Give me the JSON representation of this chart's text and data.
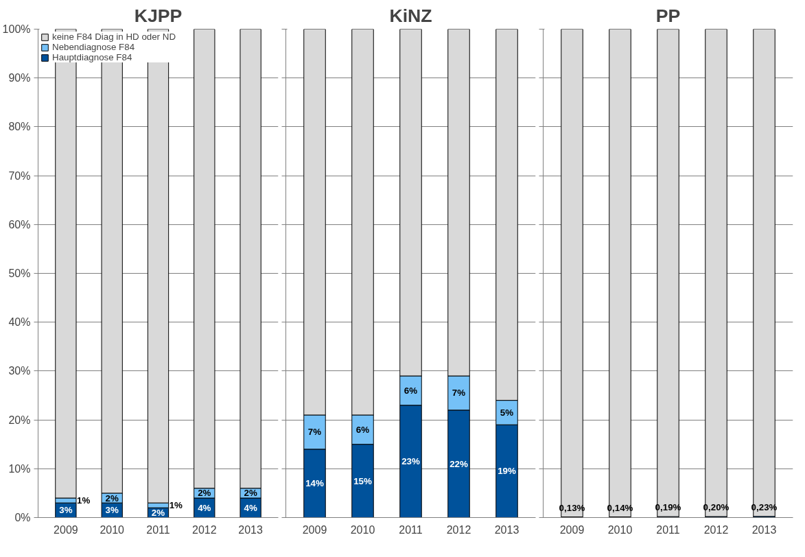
{
  "chart_data": [
    {
      "type": "bar",
      "title": "KJPP",
      "stacked": true,
      "categories": [
        "2009",
        "2010",
        "2011",
        "2012",
        "2013"
      ],
      "ylim": [
        0,
        100
      ],
      "yticks": [
        {
          "value": 0,
          "label": "0%"
        },
        {
          "value": 10,
          "label": "10%"
        },
        {
          "value": 20,
          "label": "20%"
        },
        {
          "value": 30,
          "label": "30%"
        },
        {
          "value": 40,
          "label": "40%"
        },
        {
          "value": 50,
          "label": "50%"
        },
        {
          "value": 60,
          "label": "60%"
        },
        {
          "value": 70,
          "label": "70%"
        },
        {
          "value": 80,
          "label": "80%"
        },
        {
          "value": 90,
          "label": "90%"
        },
        {
          "value": 100,
          "label": "100%"
        }
      ],
      "grid": "y",
      "legend": "top",
      "series": [
        {
          "name": "Hauptdiagnose F84",
          "color": "#00529b",
          "values": [
            3,
            3,
            2,
            4,
            4
          ],
          "value_labels": [
            "3%",
            "3%",
            "2%",
            "4%",
            "4%"
          ]
        },
        {
          "name": "Nebendiagnose F84",
          "color": "#75c1f7",
          "values": [
            1,
            2,
            1,
            2,
            2
          ],
          "value_labels": [
            "1%",
            "2%",
            "1%",
            "2%",
            "2%"
          ]
        },
        {
          "name": "keine F84 Diag in HD oder ND",
          "color": "#d9d9d9",
          "values": [
            96,
            95,
            97,
            94,
            94
          ]
        }
      ]
    },
    {
      "type": "bar",
      "title": "KiNZ",
      "stacked": true,
      "categories": [
        "2009",
        "2010",
        "2011",
        "2012",
        "2013"
      ],
      "ylim": [
        0,
        100
      ],
      "yticks": [
        {
          "value": 0,
          "label": null
        },
        {
          "value": 10,
          "label": null
        },
        {
          "value": 20,
          "label": null
        },
        {
          "value": 30,
          "label": null
        },
        {
          "value": 40,
          "label": null
        },
        {
          "value": 50,
          "label": null
        },
        {
          "value": 60,
          "label": null
        },
        {
          "value": 70,
          "label": null
        },
        {
          "value": 80,
          "label": null
        },
        {
          "value": 90,
          "label": null
        },
        {
          "value": 100,
          "label": null
        }
      ],
      "grid": "y",
      "tick_labels": "x",
      "series": [
        {
          "color": "#00529b",
          "values": [
            14,
            15,
            23,
            22,
            19
          ],
          "value_labels": [
            "14%",
            "15%",
            "23%",
            "22%",
            "19%"
          ]
        },
        {
          "color": "#75c1f7",
          "values": [
            7,
            6,
            6,
            7,
            5
          ],
          "value_labels": [
            "7%",
            "6%",
            "6%",
            "7%",
            "5%"
          ]
        },
        {
          "color": "#d9d9d9",
          "values": [
            79,
            79,
            71,
            71,
            76
          ]
        }
      ]
    },
    {
      "type": "bar",
      "title": "PP",
      "stacked": true,
      "categories": [
        "2009",
        "2010",
        "2011",
        "2012",
        "2013"
      ],
      "ylim": [
        0,
        100
      ],
      "yticks": [
        {
          "value": 0,
          "label": null
        },
        {
          "value": 10,
          "label": null
        },
        {
          "value": 20,
          "label": null
        },
        {
          "value": 30,
          "label": null
        },
        {
          "value": 40,
          "label": null
        },
        {
          "value": 50,
          "label": null
        },
        {
          "value": 60,
          "label": null
        },
        {
          "value": 70,
          "label": null
        },
        {
          "value": 80,
          "label": null
        },
        {
          "value": 90,
          "label": null
        },
        {
          "value": 100,
          "label": null
        }
      ],
      "grid": "y",
      "tick_labels": "x",
      "series": [
        {
          "color": "#00529b",
          "values": [
            0.13,
            0.14,
            0.19,
            0.2,
            0.23
          ],
          "value_labels": [
            "0,13%",
            "0,14%",
            "0,19%",
            "0,20%",
            "0,23%"
          ]
        },
        {
          "color": "#d9d9d9",
          "values": [
            99.9,
            99.9,
            99.8,
            99.8,
            99.8
          ]
        }
      ]
    }
  ]
}
